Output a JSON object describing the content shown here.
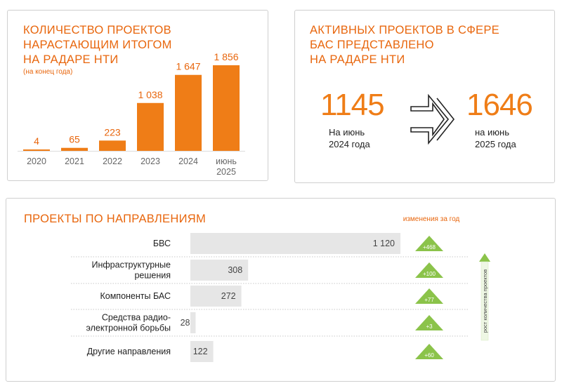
{
  "colors": {
    "accent": "#ef7d17",
    "title": "#e8660d",
    "bar_gray": "#e6e6e6",
    "up_green": "#8bc34a"
  },
  "growth": {
    "title_lines": [
      "КОЛИЧЕСТВО ПРОЕКТОВ",
      "НАРАСТАЮЩИМ ИТОГОМ",
      "НА РАДАРЕ НТИ"
    ],
    "subtitle": "(на конец года)"
  },
  "active": {
    "title_lines": [
      "АКТИВНЫХ ПРОЕКТОВ В СФЕРЕ",
      "БАС ПРЕДСТАВЛЕНО",
      "НА РАДАРЕ НТИ"
    ],
    "left": {
      "value": "1145",
      "caption_1": "На июнь",
      "caption_2": "2024 года"
    },
    "right": {
      "value": "1646",
      "caption_1": "на июнь",
      "caption_2": "2025 года"
    },
    "arrow_icon": "double-chevron-arrow-icon"
  },
  "directions": {
    "title": "ПРОЕКТЫ ПО НАПРАВЛЕНИЯМ",
    "change_header": "изменения за год",
    "growth_axis_label": "рост количества проектов"
  },
  "chart_data": [
    {
      "type": "bar",
      "categories": [
        "2020",
        "2021",
        "2022",
        "2023",
        "2024",
        "июнь 2025"
      ],
      "values": [
        4,
        65,
        223,
        1038,
        1647,
        1856
      ],
      "value_labels": [
        "4",
        "65",
        "223",
        "1 038",
        "1 647",
        "1 856"
      ],
      "category_labels": [
        [
          "2020"
        ],
        [
          "2021"
        ],
        [
          "2022"
        ],
        [
          "2023"
        ],
        [
          "2024"
        ],
        [
          "июнь",
          "2025"
        ]
      ],
      "title": "КОЛИЧЕСТВО ПРОЕКТОВ НАРАСТАЮЩИМ ИТОГОМ НА РАДАРЕ НТИ",
      "subtitle": "(на конец года)",
      "ylim": [
        0,
        1856
      ]
    },
    {
      "type": "bar",
      "orientation": "horizontal",
      "categories": [
        "БВС",
        "Инфраструктурные решения",
        "Компоненты БАС",
        "Средства радио-электронной борьбы",
        "Другие направления"
      ],
      "category_labels": [
        [
          "БВС"
        ],
        [
          "Инфраструктурные",
          "решения"
        ],
        [
          "Компоненты БАС"
        ],
        [
          "Средства радио-",
          "электронной борьбы"
        ],
        [
          "Другие направления"
        ]
      ],
      "values": [
        1120,
        308,
        272,
        28,
        122
      ],
      "value_labels": [
        "1 120",
        "308",
        "272",
        "28",
        "122"
      ],
      "changes": [
        468,
        100,
        77,
        3,
        60
      ],
      "change_labels": [
        "+468",
        "+100",
        "+77",
        "+3",
        "+60"
      ],
      "title": "ПРОЕКТЫ ПО НАПРАВЛЕНИЯМ",
      "xlim": [
        0,
        1120
      ]
    }
  ]
}
